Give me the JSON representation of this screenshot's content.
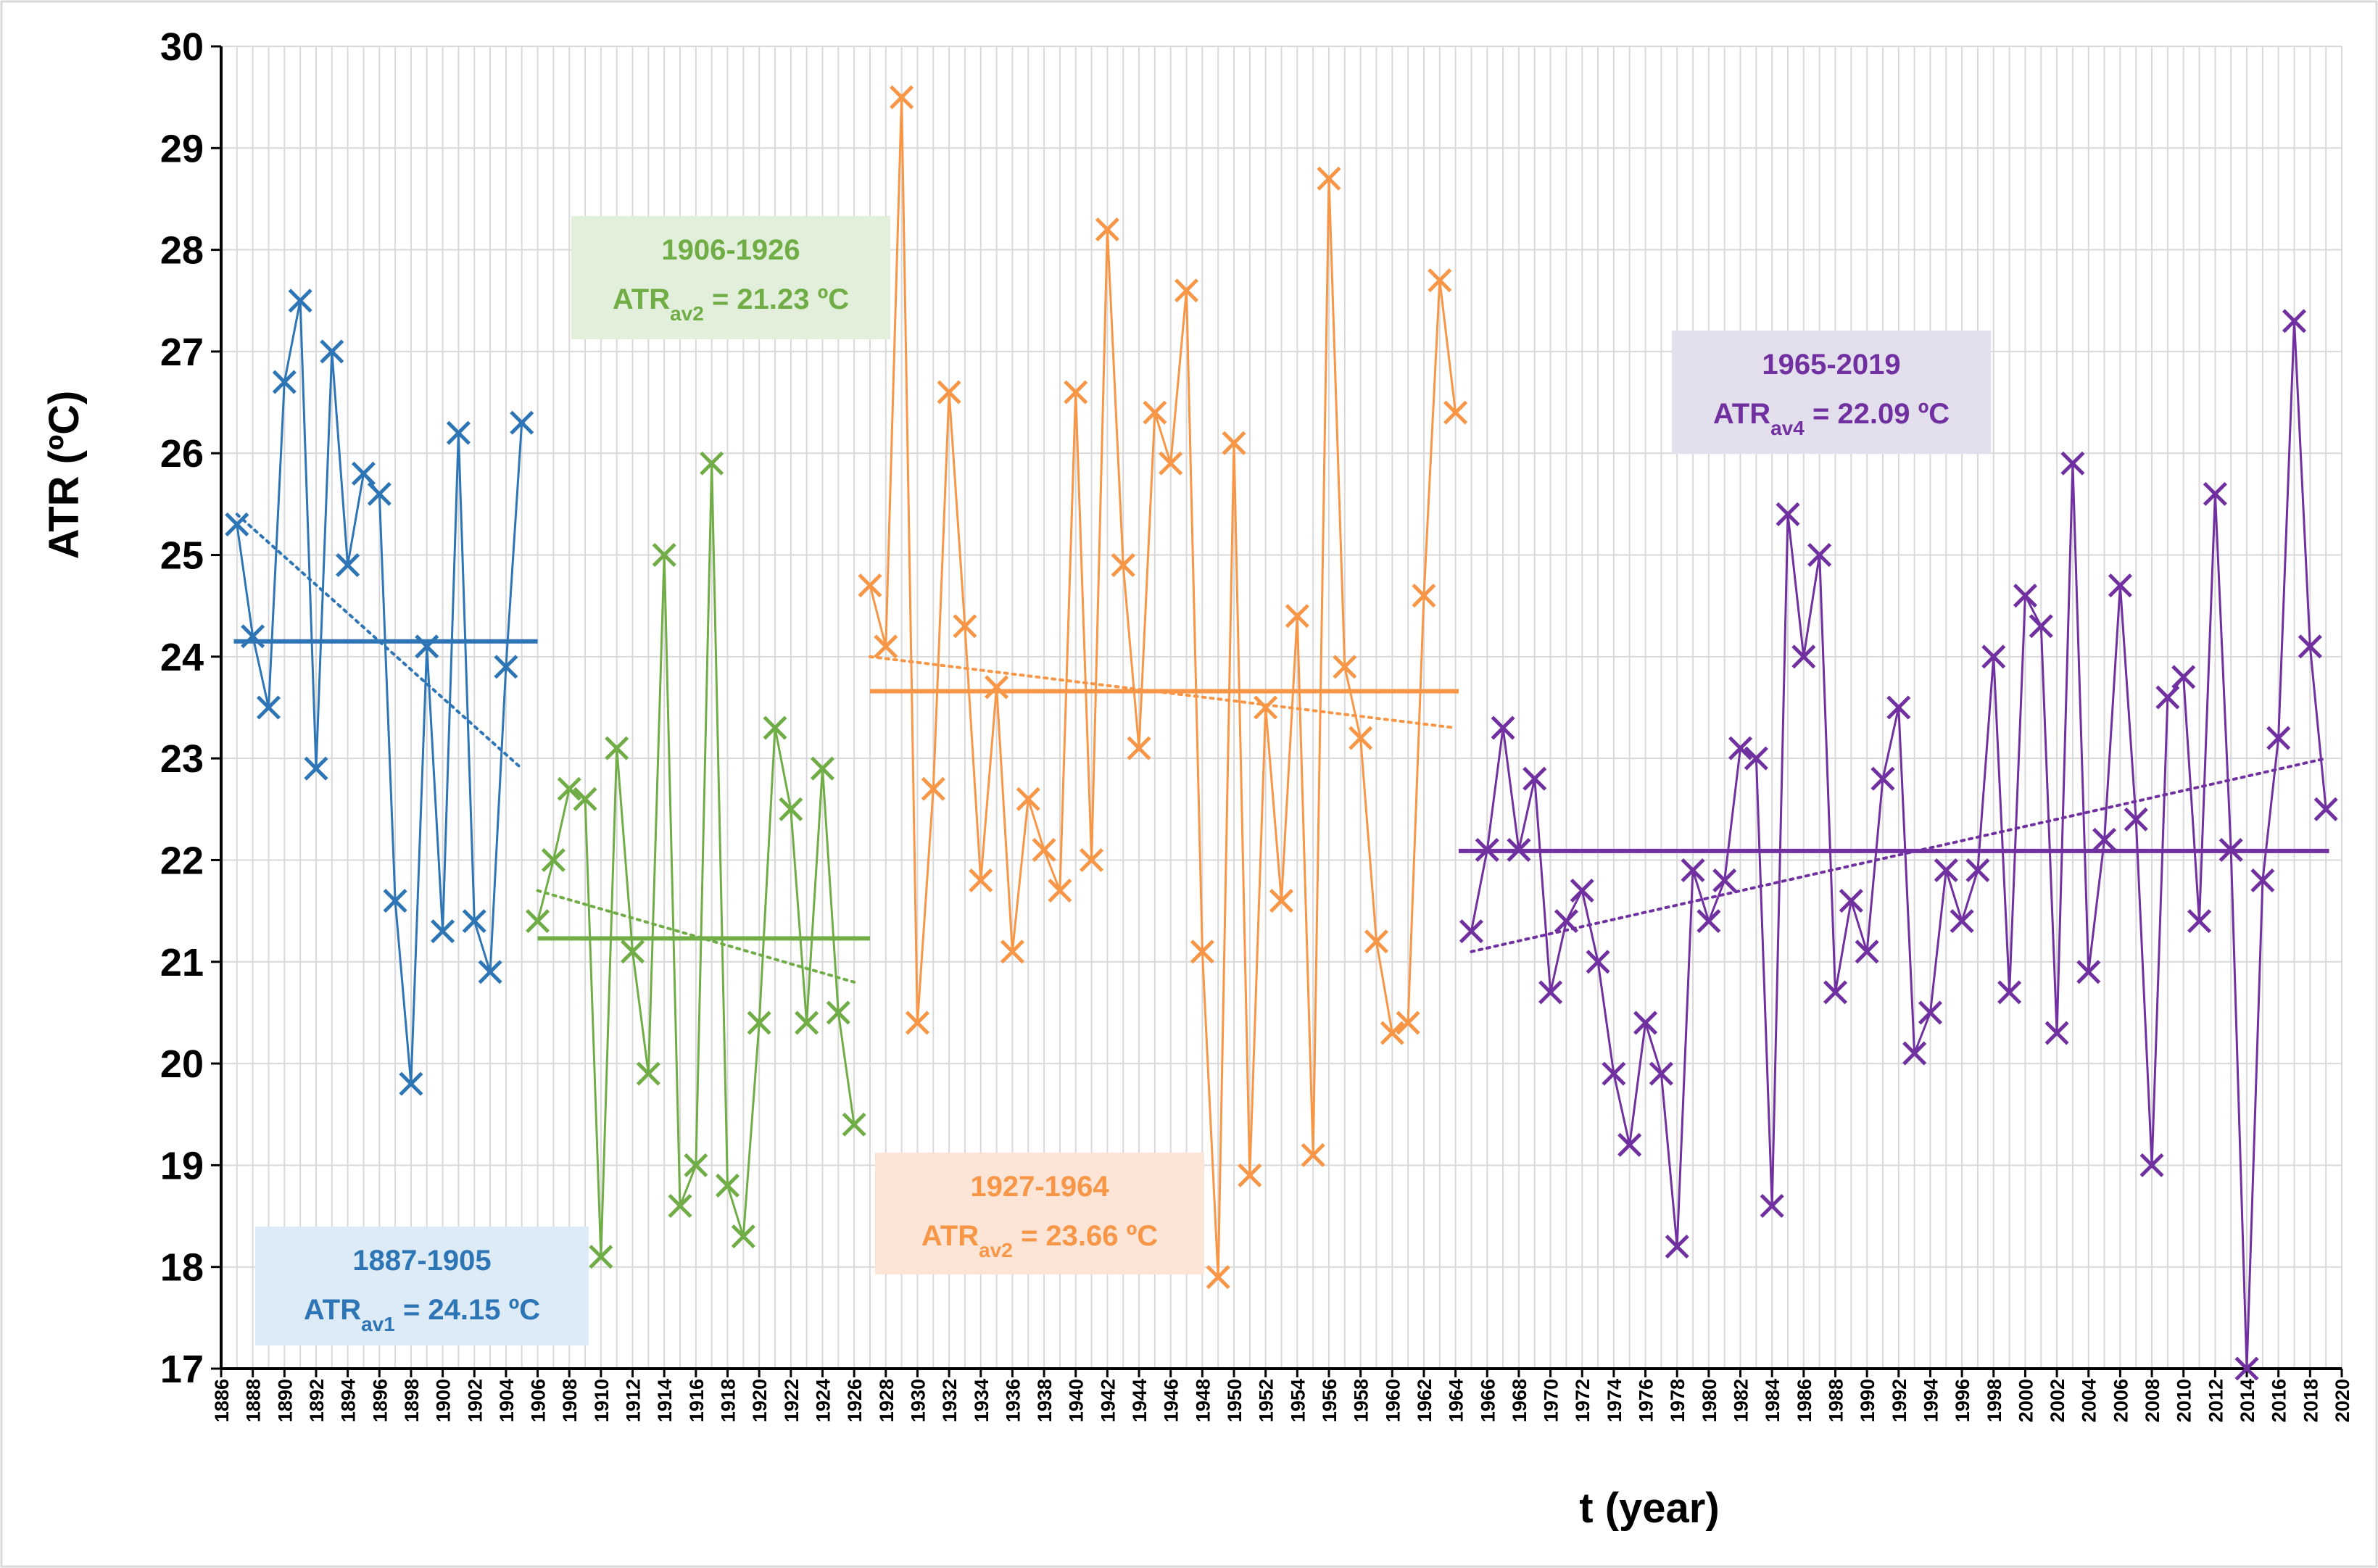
{
  "chart_data": {
    "type": "line",
    "ylabel": "ATR (ºC)",
    "xlabel": "t (year)",
    "ylim": [
      17,
      30
    ],
    "xlim": [
      1886,
      2020
    ],
    "y_ticks": [
      "17",
      "18",
      "19",
      "20",
      "21",
      "22",
      "23",
      "24",
      "25",
      "26",
      "27",
      "28",
      "29",
      "30"
    ],
    "x_ticks": [
      "1886",
      "1888",
      "1890",
      "1892",
      "1894",
      "1896",
      "1898",
      "1900",
      "1902",
      "1904",
      "1906",
      "1908",
      "1910",
      "1912",
      "1914",
      "1916",
      "1918",
      "1920",
      "1922",
      "1924",
      "1926",
      "1928",
      "1930",
      "1932",
      "1934",
      "1936",
      "1938",
      "1940",
      "1942",
      "1944",
      "1946",
      "1948",
      "1950",
      "1952",
      "1954",
      "1956",
      "1958",
      "1960",
      "1962",
      "1964",
      "1966",
      "1968",
      "1970",
      "1972",
      "1974",
      "1976",
      "1978",
      "1980",
      "1982",
      "1984",
      "1986",
      "1988",
      "1990",
      "1992",
      "1994",
      "1996",
      "1998",
      "2000",
      "2002",
      "2004",
      "2006",
      "2008",
      "2010",
      "2012",
      "2014",
      "2016",
      "2018",
      "2020"
    ],
    "grid": true,
    "series": [
      {
        "name": "1887-1905",
        "color": "#2E75B6",
        "start_year": 1887,
        "values": [
          25.3,
          24.2,
          23.5,
          26.7,
          27.5,
          22.9,
          27.0,
          24.9,
          25.8,
          25.6,
          21.6,
          19.8,
          24.1,
          21.3,
          26.2,
          21.4,
          20.9,
          23.9,
          26.3
        ],
        "mean": 24.15,
        "mean_range": [
          1886.8,
          1906.0
        ],
        "trend": [
          [
            1887,
            25.4
          ],
          [
            1905,
            22.9
          ]
        ]
      },
      {
        "name": "1906-1926",
        "color": "#70AD47",
        "start_year": 1906,
        "values": [
          21.4,
          22.0,
          22.7,
          22.6,
          18.1,
          23.1,
          21.1,
          19.9,
          25.0,
          18.6,
          19.0,
          25.9,
          18.8,
          18.3,
          20.4,
          23.3,
          22.5,
          20.4,
          22.9,
          20.5,
          19.4
        ],
        "mean": 21.23,
        "mean_range": [
          1906.0,
          1927.0
        ],
        "trend": [
          [
            1906,
            21.7
          ],
          [
            1926,
            20.8
          ]
        ]
      },
      {
        "name": "1927-1964",
        "color": "#F79646",
        "start_year": 1927,
        "values": [
          24.7,
          24.1,
          29.5,
          20.4,
          22.7,
          26.6,
          24.3,
          21.8,
          23.7,
          21.1,
          22.6,
          22.1,
          21.7,
          26.6,
          22.0,
          28.2,
          24.9,
          23.1,
          26.4,
          25.9,
          27.6,
          21.1,
          17.9,
          26.1,
          18.9,
          23.5,
          21.6,
          24.4,
          19.1,
          28.7,
          23.9,
          23.2,
          21.2,
          20.3,
          20.4,
          24.6,
          27.7,
          26.4
        ],
        "mean": 23.66,
        "mean_range": [
          1927.0,
          1964.2
        ],
        "trend": [
          [
            1927,
            24.0
          ],
          [
            1964,
            23.3
          ]
        ]
      },
      {
        "name": "1965-2019",
        "color": "#7030A0",
        "start_year": 1965,
        "values": [
          21.3,
          22.1,
          23.3,
          22.1,
          22.8,
          20.7,
          21.4,
          21.7,
          21.0,
          19.9,
          19.2,
          20.4,
          19.9,
          18.2,
          21.9,
          21.4,
          21.8,
          23.1,
          23.0,
          18.6,
          25.4,
          24.0,
          25.0,
          20.7,
          21.6,
          21.1,
          22.8,
          23.5,
          20.1,
          20.5,
          21.9,
          21.4,
          21.9,
          24.0,
          20.7,
          24.6,
          24.3,
          20.3,
          25.9,
          20.9,
          22.2,
          24.7,
          22.4,
          19.0,
          23.6,
          23.8,
          21.4,
          25.6,
          22.1,
          17.0,
          21.8,
          23.2,
          27.3,
          24.1,
          22.5
        ],
        "mean": 22.09,
        "mean_range": [
          1964.2,
          2019.2
        ],
        "trend": [
          [
            1965,
            21.1
          ],
          [
            2019,
            23.0
          ]
        ]
      }
    ],
    "annotations": [
      {
        "series": "1887-1905",
        "line1": "1887-1905",
        "label": "ATR",
        "sub": "av1",
        "value": " = 24.15 ºC",
        "fill": "#DDEBF7",
        "color": "#2E75B6"
      },
      {
        "series": "1906-1926",
        "line1": "1906-1926",
        "label": "ATR",
        "sub": "av2",
        "value": " = 21.23 ºC",
        "fill": "#E2EFDA",
        "color": "#70AD47"
      },
      {
        "series": "1927-1964",
        "line1": "1927-1964",
        "label": "ATR",
        "sub": "av2",
        "value": " = 23.66 ºC",
        "fill": "#FCE4D6",
        "color": "#F79646"
      },
      {
        "series": "1965-2019",
        "line1": "1965-2019",
        "label": "ATR",
        "sub": "av4",
        "value": " = 22.09 ºC",
        "fill": "#E4DFEC",
        "color": "#7030A0"
      }
    ]
  }
}
